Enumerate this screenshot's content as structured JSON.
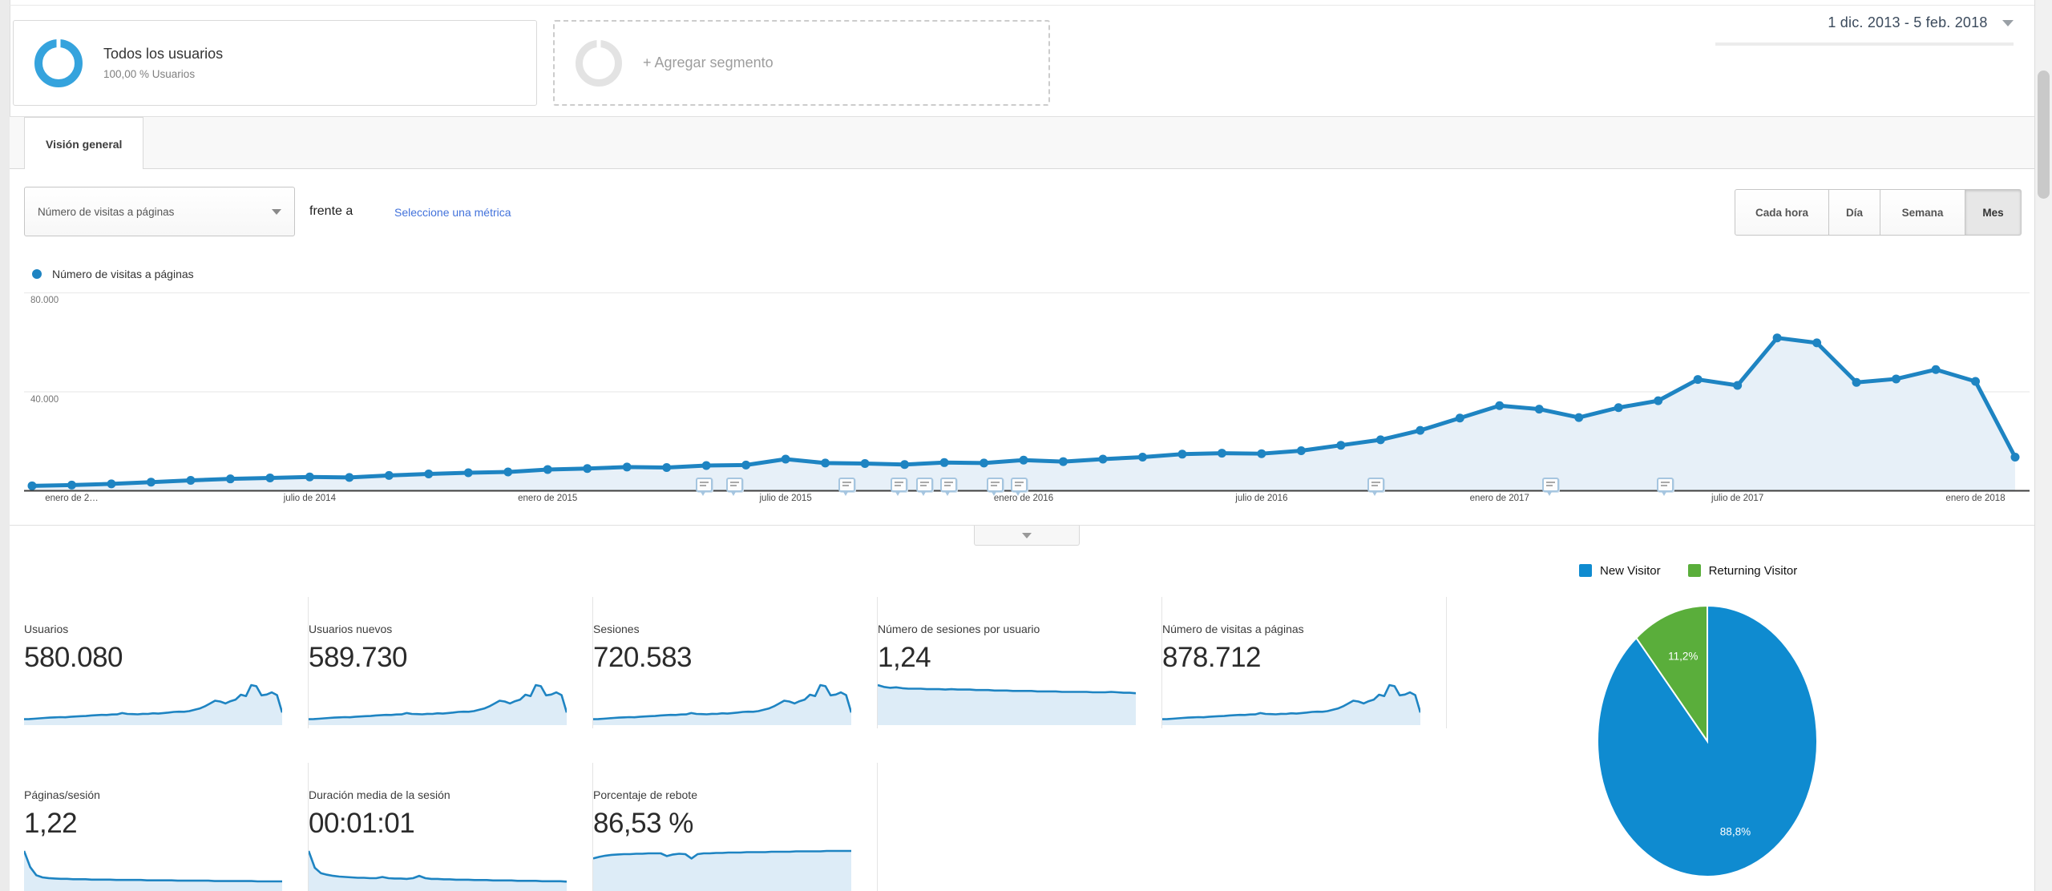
{
  "segments": {
    "all_users": {
      "title": "Todos los usuarios",
      "subtitle": "100,00 % Usuarios"
    },
    "add_segment": {
      "label": "+ Agregar segmento"
    }
  },
  "date_range": {
    "label": "1 dic. 2013 - 5 feb. 2018"
  },
  "tabs": {
    "overview": "Visión general"
  },
  "toolbar": {
    "metric_select": "Número de visitas a páginas",
    "versus": "frente a",
    "select_metric_link": "Seleccione una métrica",
    "granularity": [
      "Cada hora",
      "Día",
      "Semana",
      "Mes"
    ],
    "granularity_active": "Mes"
  },
  "chart_data": [
    {
      "type": "line",
      "title": "Número de visitas a páginas",
      "series": [
        {
          "name": "Número de visitas a páginas",
          "unit": "pageviews (thousands)",
          "values": [
            2.0,
            2.3,
            2.8,
            3.5,
            4.2,
            4.8,
            5.2,
            5.6,
            5.4,
            6.2,
            6.8,
            7.3,
            7.6,
            8.6,
            9.0,
            9.6,
            9.4,
            10.2,
            10.4,
            12.8,
            11.2,
            11.0,
            10.6,
            11.4,
            11.2,
            12.4,
            11.8,
            12.8,
            13.6,
            14.8,
            15.2,
            15.0,
            16.2,
            18.4,
            20.6,
            24.4,
            29.4,
            34.4,
            33.0,
            29.6,
            33.6,
            36.4,
            45.0,
            42.6,
            61.8,
            59.8,
            43.8,
            45.2,
            49.0,
            44.2,
            13.6
          ]
        }
      ],
      "x_start": "diciembre de 2013",
      "x_end": "febrero de 2018",
      "x_ticks": [
        {
          "index": 1,
          "label": "enero de 2…"
        },
        {
          "index": 7,
          "label": "julio de 2014"
        },
        {
          "index": 13,
          "label": "enero de 2015"
        },
        {
          "index": 19,
          "label": "julio de 2015"
        },
        {
          "index": 25,
          "label": "enero de 2016"
        },
        {
          "index": 31,
          "label": "julio de 2016"
        },
        {
          "index": 37,
          "label": "enero de 2017"
        },
        {
          "index": 43,
          "label": "julio de 2017"
        },
        {
          "index": 49,
          "label": "enero de 2018"
        }
      ],
      "y_ticks": [
        "40.000",
        "80.000"
      ],
      "ylim": [
        0,
        83
      ],
      "grid": true,
      "legend_position": "top-left",
      "line_color": "#1e84c2",
      "fill_color": "#e7f0f8",
      "annotations_x": [
        0.335,
        0.35,
        0.406,
        0.432,
        0.445,
        0.457,
        0.48,
        0.492,
        0.67,
        0.757,
        0.814
      ]
    },
    {
      "type": "pie",
      "labels": [
        "New Visitor",
        "Returning Visitor"
      ],
      "values": [
        88.8,
        11.2
      ],
      "display_labels": [
        "88,8%",
        "11,2%"
      ],
      "colors": [
        "#0f8bd0",
        "#5aae3b"
      ],
      "legend_position": "top"
    },
    {
      "type": "sparklines",
      "note": "normalized shapes of the eight metric-card mini charts, same order as metrics.cards",
      "series": [
        {
          "name": "Usuarios",
          "values": [
            2.0,
            2.3,
            2.8,
            3.5,
            4.2,
            4.8,
            5.2,
            5.6,
            5.4,
            6.2,
            6.8,
            7.3,
            7.6,
            8.6,
            9.0,
            9.6,
            9.4,
            10.2,
            10.4,
            12.8,
            11.2,
            11.0,
            10.6,
            11.4,
            11.2,
            12.4,
            11.8,
            12.8,
            13.6,
            14.8,
            15.2,
            15.0,
            16.2,
            18.4,
            20.6,
            24.4,
            29.4,
            34.4,
            33.0,
            29.6,
            33.6,
            36.4,
            45.0,
            42.6,
            61.8,
            59.8,
            43.8,
            45.2,
            49.0,
            44.2,
            13.6
          ]
        },
        {
          "name": "Usuarios nuevos",
          "values": [
            2.0,
            2.3,
            2.8,
            3.5,
            4.2,
            4.8,
            5.2,
            5.6,
            5.4,
            6.2,
            6.8,
            7.3,
            7.6,
            8.6,
            9.0,
            9.6,
            9.4,
            10.2,
            10.4,
            12.8,
            11.2,
            11.0,
            10.6,
            11.4,
            11.2,
            12.4,
            11.8,
            12.8,
            13.6,
            14.8,
            15.2,
            15.0,
            16.2,
            18.4,
            20.6,
            24.4,
            29.4,
            34.4,
            33.0,
            29.6,
            33.6,
            36.4,
            45.0,
            42.6,
            61.8,
            59.8,
            43.8,
            45.2,
            49.0,
            44.2,
            13.6
          ]
        },
        {
          "name": "Sesiones",
          "values": [
            2.0,
            2.3,
            2.8,
            3.5,
            4.2,
            4.8,
            5.2,
            5.6,
            5.4,
            6.2,
            6.8,
            7.3,
            7.6,
            8.6,
            9.0,
            9.6,
            9.4,
            10.2,
            10.4,
            12.8,
            11.2,
            11.0,
            10.6,
            11.4,
            11.2,
            12.4,
            11.8,
            12.8,
            13.6,
            14.8,
            15.2,
            15.0,
            16.2,
            18.4,
            20.6,
            24.4,
            29.4,
            34.4,
            33.0,
            29.6,
            33.6,
            36.4,
            45.0,
            42.6,
            61.8,
            59.8,
            43.8,
            45.2,
            49.0,
            44.2,
            13.6
          ]
        },
        {
          "name": "Número de sesiones por usuario",
          "values": [
            78,
            74,
            72,
            73,
            71,
            70,
            70,
            70,
            69,
            69,
            69,
            68,
            69,
            68,
            68,
            68,
            67,
            67,
            67,
            66,
            66,
            66,
            65,
            65,
            65,
            65,
            64,
            64,
            64,
            64,
            63,
            63,
            63,
            63,
            63,
            62,
            62,
            62,
            63,
            62,
            61,
            61,
            60
          ]
        },
        {
          "name": "Número de visitas a páginas",
          "values": [
            2.0,
            2.3,
            2.8,
            3.5,
            4.2,
            4.8,
            5.2,
            5.6,
            5.4,
            6.2,
            6.8,
            7.3,
            7.6,
            8.6,
            9.0,
            9.6,
            9.4,
            10.2,
            10.4,
            12.8,
            11.2,
            11.0,
            10.6,
            11.4,
            11.2,
            12.4,
            11.8,
            12.8,
            13.6,
            14.8,
            15.2,
            15.0,
            16.2,
            18.4,
            20.6,
            24.4,
            29.4,
            34.4,
            33.0,
            29.6,
            33.6,
            36.4,
            45.0,
            42.6,
            61.8,
            59.8,
            43.8,
            45.2,
            49.0,
            44.2,
            13.6
          ]
        },
        {
          "name": "Páginas/sesión",
          "values": [
            96,
            52,
            30,
            24,
            22,
            21,
            20,
            20,
            19,
            19,
            19,
            18,
            18,
            18,
            18,
            17,
            17,
            17,
            17,
            17,
            16,
            16,
            16,
            16,
            16,
            15,
            15,
            15,
            15,
            15,
            15,
            14,
            14,
            14,
            14,
            14,
            14,
            14,
            13,
            13,
            13,
            13,
            13
          ]
        },
        {
          "name": "Duración media de la sesión",
          "values": [
            92,
            48,
            34,
            30,
            27,
            25,
            24,
            23,
            22,
            22,
            21,
            21,
            24,
            21,
            20,
            20,
            19,
            21,
            27,
            21,
            19,
            19,
            18,
            18,
            17,
            17,
            17,
            16,
            16,
            16,
            15,
            15,
            15,
            15,
            14,
            14,
            14,
            14,
            13,
            13,
            13,
            13,
            12
          ]
        },
        {
          "name": "Porcentaje de rebote",
          "values": [
            70,
            74,
            77,
            79,
            80,
            81,
            81,
            82,
            82,
            83,
            83,
            83,
            76,
            80,
            82,
            81,
            70,
            81,
            83,
            83,
            84,
            84,
            85,
            85,
            85,
            86,
            86,
            86,
            86,
            87,
            87,
            87,
            87,
            88,
            88,
            88,
            88,
            88,
            89,
            89,
            89,
            89,
            89
          ]
        }
      ]
    }
  ],
  "metrics": {
    "cards": [
      {
        "label": "Usuarios",
        "value": "580.080"
      },
      {
        "label": "Usuarios nuevos",
        "value": "589.730"
      },
      {
        "label": "Sesiones",
        "value": "720.583"
      },
      {
        "label": "Número de sesiones por usuario",
        "value": "1,24"
      },
      {
        "label": "Número de visitas a páginas",
        "value": "878.712"
      },
      {
        "label": "Páginas/sesión",
        "value": "1,22"
      },
      {
        "label": "Duración media de la sesión",
        "value": "00:01:01"
      },
      {
        "label": "Porcentaje de rebote",
        "value": "86,53 %"
      }
    ]
  },
  "colors": {
    "line_blue": "#1e84c2",
    "fill_blue": "#e7f0f8",
    "pie_blue": "#0f8bd0",
    "pie_green": "#5aae3b",
    "segment_ring_blue": "#35a3dd",
    "link_blue": "#4272db"
  }
}
